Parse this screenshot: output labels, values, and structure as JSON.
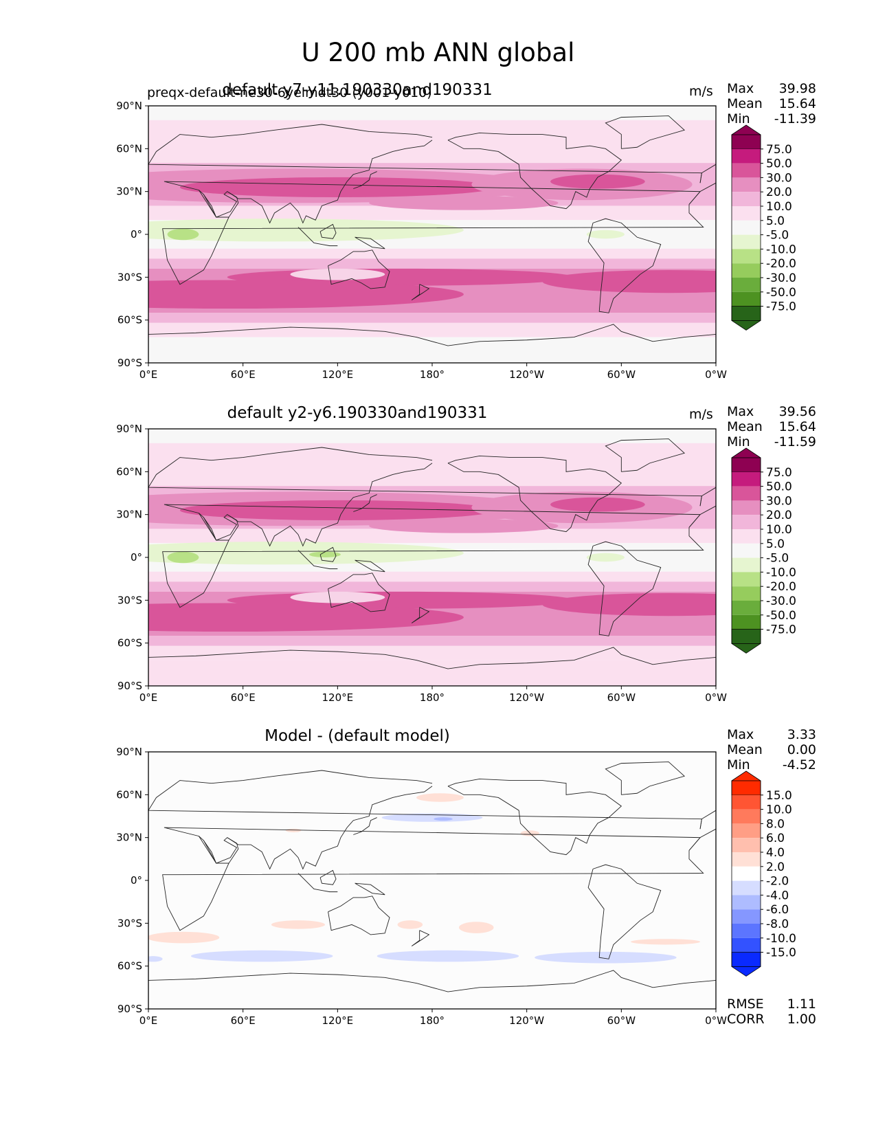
{
  "figure_title": "U 200 mb ANN global",
  "x_ticks": [
    "0°E",
    "60°E",
    "120°E",
    "180°",
    "120°W",
    "60°W",
    "0°W"
  ],
  "y_ticks": [
    "90°N",
    "60°N",
    "30°N",
    "0°",
    "30°S",
    "60°S",
    "90°S"
  ],
  "panels": [
    {
      "title": "default y7-y11.190330and190331",
      "subtitle": "preqx-default-ne30-6yelmdt30 (y001-y010)",
      "units": "m/s",
      "stats": {
        "max_label": "Max",
        "max": "39.98",
        "mean_label": "Mean",
        "mean": "15.64",
        "min_label": "Min",
        "min": "-11.39"
      },
      "colorbar_labels": [
        "75.0",
        "50.0",
        "30.0",
        "20.0",
        "10.0",
        "5.0",
        "-5.0",
        "-10.0",
        "-20.0",
        "-30.0",
        "-50.0",
        "-75.0"
      ],
      "colorbar_colors": [
        "#8e0152",
        "#c51b7d",
        "#d9559a",
        "#e68fc0",
        "#f1b6da",
        "#fbe0ef",
        "#f7f7f7",
        "#e6f5d0",
        "#b8e186",
        "#96cc5d",
        "#6aad3c",
        "#4d9221",
        "#276419"
      ]
    },
    {
      "title": "default y2-y6.190330and190331",
      "subtitle": "",
      "units": "m/s",
      "stats": {
        "max_label": "Max",
        "max": "39.56",
        "mean_label": "Mean",
        "mean": "15.64",
        "min_label": "Min",
        "min": "-11.59"
      },
      "colorbar_labels": [
        "75.0",
        "50.0",
        "30.0",
        "20.0",
        "10.0",
        "5.0",
        "-5.0",
        "-10.0",
        "-20.0",
        "-30.0",
        "-50.0",
        "-75.0"
      ],
      "colorbar_colors": [
        "#8e0152",
        "#c51b7d",
        "#d9559a",
        "#e68fc0",
        "#f1b6da",
        "#fbe0ef",
        "#f7f7f7",
        "#e6f5d0",
        "#b8e186",
        "#96cc5d",
        "#6aad3c",
        "#4d9221",
        "#276419"
      ]
    },
    {
      "title": "Model - (default model)",
      "subtitle": "",
      "units": "",
      "stats": {
        "max_label": "Max",
        "max": "3.33",
        "mean_label": "Mean",
        "mean": "0.00",
        "min_label": "Min",
        "min": "-4.52"
      },
      "colorbar_labels": [
        "15.0",
        "10.0",
        "8.0",
        "6.0",
        "4.0",
        "2.0",
        "-2.0",
        "-4.0",
        "-6.0",
        "-8.0",
        "-10.0",
        "-15.0"
      ],
      "colorbar_colors": [
        "#ff2b00",
        "#ff5533",
        "#ff7a5c",
        "#ff9e85",
        "#ffbfae",
        "#ffe0d6",
        "#ffffff",
        "#d6ddff",
        "#aebcff",
        "#8597ff",
        "#5c75ff",
        "#3352ff",
        "#0a2aff"
      ],
      "footer": {
        "rmse_label": "RMSE",
        "rmse": "1.11",
        "corr_label": "CORR",
        "corr": "1.00"
      }
    }
  ]
}
